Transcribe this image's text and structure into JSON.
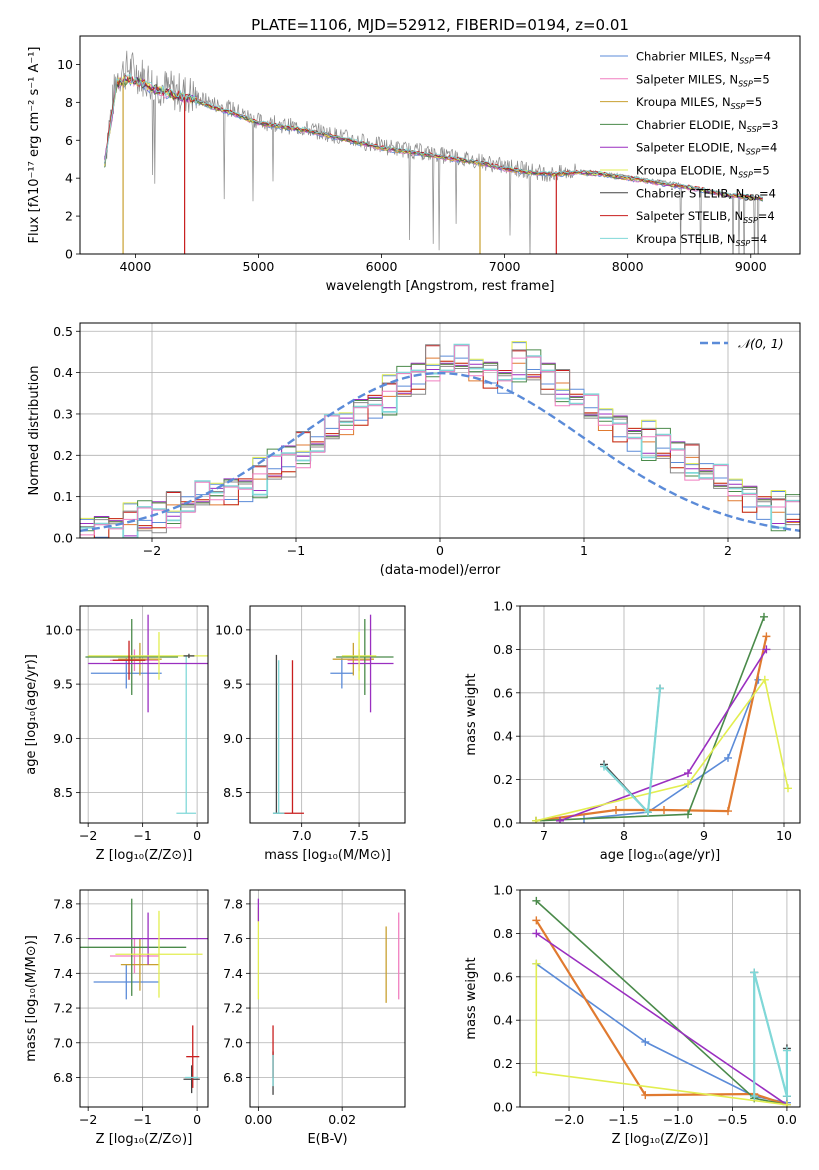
{
  "figure": {
    "title": "PLATE=1106, MJD=52912, FIBERID=0194, z=0.01",
    "colors": {
      "Chabrier MILES": "#5b8bd8",
      "Salpeter MILES": "#f07fc0",
      "Kroupa MILES": "#c8a030",
      "Chabrier ELODIE": "#4a8a4a",
      "Salpeter ELODIE": "#9a2fc0",
      "Kroupa ELODIE": "#e2ee50",
      "Chabrier STELIB": "#444444",
      "Salpeter STELIB": "#c81e1e",
      "Kroupa STELIB": "#80d8d8",
      "spectrum": "#8a8a8a",
      "orange": "#e07a30",
      "gaussian": "#5b8bd8",
      "grid": "#b0b0b0"
    }
  },
  "chart_data": [
    {
      "type": "line",
      "id": "spectrum",
      "xlabel": "wavelength [Angstrom, rest frame]",
      "ylabel": "Flux [fλ10⁻¹⁷ erg cm⁻² s⁻¹ A⁻¹]",
      "xlim": [
        3550,
        9400
      ],
      "ylim": [
        0,
        11.5
      ],
      "xticks": [
        4000,
        5000,
        6000,
        7000,
        8000,
        9000
      ],
      "yticks": [
        0,
        2,
        4,
        6,
        8,
        10
      ],
      "grid": false,
      "legend_position": "top-right",
      "legend": [
        "Chabrier MILES, N_SSP=4",
        "Salpeter MILES, N_SSP=5",
        "Kroupa MILES, N_SSP=5",
        "Chabrier ELODIE, N_SSP=3",
        "Salpeter ELODIE, N_SSP=4",
        "Kroupa ELODIE, N_SSP=5",
        "Chabrier STELIB, N_SSP=4",
        "Salpeter STELIB, N_SSP=4",
        "Kroupa STELIB, N_SSP=4"
      ],
      "data_wavelength": [
        3750,
        3850,
        3950,
        4050,
        4150,
        4300,
        4450,
        4600,
        4800,
        5000,
        5200,
        5400,
        5600,
        5800,
        6000,
        6200,
        6400,
        6600,
        6800,
        7000,
        7200,
        7400,
        7600,
        7800,
        8000,
        8200,
        8400,
        8600,
        8800,
        9000,
        9100
      ],
      "data_flux": [
        5.2,
        9.4,
        9.8,
        9.4,
        9.0,
        8.6,
        8.4,
        8.0,
        7.6,
        7.0,
        6.8,
        6.6,
        6.3,
        6.0,
        5.7,
        5.5,
        5.3,
        5.1,
        4.9,
        4.6,
        4.4,
        4.2,
        4.4,
        4.3,
        4.1,
        3.9,
        3.7,
        3.4,
        3.1,
        3.0,
        2.9
      ],
      "model_wavelength": [
        3750,
        3850,
        3950,
        4050,
        4150,
        4300,
        4450,
        4600,
        4800,
        5000,
        5200,
        5400,
        5600,
        5800,
        6000,
        6200,
        6400,
        6600,
        6800,
        7000,
        7200,
        7400,
        7600,
        7800,
        8000,
        8200,
        8400,
        8600,
        8800,
        9000,
        9100
      ],
      "model_flux": [
        4.8,
        9.0,
        9.2,
        9.0,
        8.7,
        8.4,
        8.2,
        7.8,
        7.4,
        6.9,
        6.7,
        6.5,
        6.2,
        5.9,
        5.6,
        5.4,
        5.2,
        5.0,
        4.8,
        4.5,
        4.3,
        4.2,
        4.3,
        4.2,
        4.0,
        3.8,
        3.6,
        3.4,
        3.1,
        3.0,
        2.9
      ],
      "model_drop_lines": [
        {
          "x": 3900,
          "series": "Kroupa MILES"
        },
        {
          "x": 4400,
          "series": "Salpeter STELIB"
        },
        {
          "x": 6800,
          "series": "Kroupa MILES"
        },
        {
          "x": 7420,
          "series": "Salpeter STELIB"
        }
      ]
    },
    {
      "type": "line",
      "id": "residuals",
      "xlabel": "(data-model)/error",
      "ylabel": "Normed distribution",
      "xlim": [
        -2.5,
        2.5
      ],
      "ylim": [
        0,
        0.52
      ],
      "xticks": [
        -2,
        -1,
        0,
        1,
        2
      ],
      "yticks": [
        0.0,
        0.1,
        0.2,
        0.3,
        0.4,
        0.5
      ],
      "grid": true,
      "legend_position": "top-right",
      "legend": [
        "𝒩(0, 1)"
      ],
      "gaussian": {
        "mean": 0,
        "sigma": 1
      },
      "bin_edges_start": -2.5,
      "bin_width": 0.1,
      "hist_values": [
        0.025,
        0.027,
        0.032,
        0.04,
        0.045,
        0.055,
        0.065,
        0.08,
        0.1,
        0.11,
        0.118,
        0.128,
        0.15,
        0.17,
        0.19,
        0.21,
        0.225,
        0.26,
        0.28,
        0.31,
        0.33,
        0.35,
        0.37,
        0.39,
        0.42,
        0.42,
        0.43,
        0.41,
        0.4,
        0.39,
        0.43,
        0.41,
        0.39,
        0.36,
        0.34,
        0.31,
        0.29,
        0.27,
        0.25,
        0.24,
        0.22,
        0.2,
        0.18,
        0.16,
        0.14,
        0.12,
        0.1,
        0.085,
        0.07,
        0.06
      ],
      "hist_offsets": [
        0,
        0.02,
        -0.02,
        0.03,
        -0.03,
        0.015,
        -0.015,
        0.025,
        -0.025
      ]
    },
    {
      "type": "scatter",
      "id": "age-vs-Z",
      "xlabel": "Z [log₁₀(Z/Z⊙)]",
      "ylabel": "age  [log₁₀(age/yr)]",
      "xlim": [
        -2.15,
        0.2
      ],
      "ylim": [
        8.22,
        10.22
      ],
      "xticks": [
        -2,
        -1,
        0
      ],
      "yticks": [
        8.5,
        9.0,
        9.5,
        10.0
      ],
      "grid": true,
      "points": [
        {
          "series": "Chabrier MILES",
          "x": -1.3,
          "y": 9.6,
          "xerr": 0.65,
          "yerr": 0.14
        },
        {
          "series": "Salpeter MILES",
          "x": -1.15,
          "y": 9.72,
          "xerr": 0.45,
          "yerr": 0.1
        },
        {
          "series": "Kroupa MILES",
          "x": -1.05,
          "y": 9.73,
          "xerr": 0.4,
          "yerr": 0.15
        },
        {
          "series": "Chabrier ELODIE",
          "x": -1.2,
          "y": 9.75,
          "xerr": 0.85,
          "yerr": 0.35
        },
        {
          "series": "Salpeter ELODIE",
          "x": -0.9,
          "y": 9.69,
          "xerr": 1.1,
          "yerr": 0.45
        },
        {
          "series": "Kroupa ELODIE",
          "x": -0.7,
          "y": 9.76,
          "xerr": 1.3,
          "yerr": 0.22
        },
        {
          "series": "Chabrier STELIB",
          "x": -0.15,
          "y": 9.76,
          "xerr": 0.1,
          "yerr": 0.02
        },
        {
          "series": "Salpeter STELIB",
          "x": -1.25,
          "y": 9.72,
          "xerr": 0.3,
          "yerr": 0.18
        },
        {
          "series": "Kroupa STELIB",
          "x": -0.2,
          "y": 8.31,
          "xerr": 0.18,
          "yerr": 0.0
        }
      ],
      "vertical_lines": [
        {
          "series": "Kroupa STELIB",
          "x": -0.2,
          "y0": 8.31,
          "y1": 9.76
        }
      ]
    },
    {
      "type": "scatter",
      "id": "age-vs-mass",
      "xlabel": "mass [log₁₀(M/M⊙)]",
      "ylabel": "",
      "xlim": [
        6.55,
        7.9
      ],
      "ylim": [
        8.22,
        10.22
      ],
      "xticks": [
        7.0,
        7.5
      ],
      "yticks": [
        8.5,
        9.0,
        9.5,
        10.0
      ],
      "grid": true,
      "points": [
        {
          "series": "Chabrier MILES",
          "x": 7.35,
          "y": 9.6,
          "xerr": 0.1,
          "yerr": 0.14
        },
        {
          "series": "Salpeter MILES",
          "x": 7.5,
          "y": 9.72,
          "xerr": 0.1,
          "yerr": 0.1
        },
        {
          "series": "Kroupa MILES",
          "x": 7.45,
          "y": 9.73,
          "xerr": 0.18,
          "yerr": 0.15
        },
        {
          "series": "Chabrier ELODIE",
          "x": 7.55,
          "y": 9.75,
          "xerr": 0.25,
          "yerr": 0.35
        },
        {
          "series": "Salpeter ELODIE",
          "x": 7.6,
          "y": 9.69,
          "xerr": 0.2,
          "yerr": 0.45
        },
        {
          "series": "Kroupa ELODIE",
          "x": 7.5,
          "y": 9.76,
          "xerr": 0.15,
          "yerr": 0.22
        },
        {
          "series": "Chabrier STELIB",
          "x": 6.8,
          "y": 8.31,
          "xerr": 0.05,
          "yerr": 0.0
        },
        {
          "series": "Salpeter STELIB",
          "x": 6.92,
          "y": 8.31,
          "xerr": 0.1,
          "yerr": 0.0
        },
        {
          "series": "Kroupa STELIB",
          "x": 6.8,
          "y": 8.31,
          "xerr": 0.05,
          "yerr": 0.0
        }
      ],
      "vertical_lines": [
        {
          "series": "Chabrier STELIB",
          "x": 6.78,
          "y0": 8.31,
          "y1": 9.77
        },
        {
          "series": "Kroupa STELIB",
          "x": 6.8,
          "y0": 8.31,
          "y1": 9.72
        },
        {
          "series": "Salpeter STELIB",
          "x": 6.92,
          "y0": 8.31,
          "y1": 9.72
        }
      ]
    },
    {
      "type": "line",
      "id": "massweight-vs-age",
      "xlabel": "age  [log₁₀(age/yr)]",
      "ylabel": "mass weight",
      "xlim": [
        6.7,
        10.2
      ],
      "ylim": [
        0,
        1.0
      ],
      "xticks": [
        7,
        8,
        9,
        10
      ],
      "yticks": [
        0.0,
        0.2,
        0.4,
        0.6,
        0.8,
        1.0
      ],
      "grid": true,
      "series": [
        {
          "name": "Chabrier MILES",
          "x": [
            7.5,
            8.3,
            9.3,
            9.68
          ],
          "y": [
            0.02,
            0.05,
            0.3,
            0.66
          ]
        },
        {
          "name": "Kroupa MILES",
          "x": [
            6.9,
            7.9,
            8.5,
            9.3,
            9.78
          ],
          "y": [
            0.01,
            0.06,
            0.06,
            0.055,
            0.86
          ]
        },
        {
          "name": "Chabrier ELODIE",
          "x": [
            6.9,
            8.8,
            9.75
          ],
          "y": [
            0.01,
            0.04,
            0.95
          ]
        },
        {
          "name": "Salpeter ELODIE",
          "x": [
            7.2,
            8.8,
            9.78
          ],
          "y": [
            0.01,
            0.23,
            0.8
          ]
        },
        {
          "name": "Kroupa ELODIE",
          "x": [
            6.9,
            8.8,
            9.76,
            10.05
          ],
          "y": [
            0.01,
            0.18,
            0.66,
            0.16
          ]
        },
        {
          "name": "Chabrier STELIB",
          "x": [
            7.75,
            8.3,
            8.45
          ],
          "y": [
            0.27,
            0.05,
            0.62
          ]
        },
        {
          "name": "Kroupa STELIB",
          "x": [
            7.75,
            8.3,
            8.45
          ],
          "y": [
            0.26,
            0.05,
            0.62
          ]
        }
      ]
    },
    {
      "type": "scatter",
      "id": "mass-vs-Z",
      "xlabel": "Z [log₁₀(Z/Z⊙)]",
      "ylabel": "mass [log₁₀(M/M⊙)]",
      "xlim": [
        -2.15,
        0.2
      ],
      "ylim": [
        6.63,
        7.88
      ],
      "xticks": [
        -2,
        -1,
        0
      ],
      "yticks": [
        6.8,
        7.0,
        7.2,
        7.4,
        7.6,
        7.8
      ],
      "grid": true,
      "points": [
        {
          "series": "Chabrier MILES",
          "x": -1.3,
          "y": 7.35,
          "xerr": 0.6,
          "yerr": 0.1
        },
        {
          "series": "Salpeter MILES",
          "x": -1.15,
          "y": 7.5,
          "xerr": 0.45,
          "yerr": 0.1
        },
        {
          "series": "Kroupa MILES",
          "x": -1.05,
          "y": 7.45,
          "xerr": 0.35,
          "yerr": 0.15
        },
        {
          "series": "Chabrier ELODIE",
          "x": -1.2,
          "y": 7.55,
          "xerr": 1.0,
          "yerr": 0.28
        },
        {
          "series": "Salpeter ELODIE",
          "x": -0.9,
          "y": 7.6,
          "xerr": 1.1,
          "yerr": 0.15
        },
        {
          "series": "Kroupa ELODIE",
          "x": -0.7,
          "y": 7.51,
          "xerr": 0.8,
          "yerr": 0.25
        },
        {
          "series": "Chabrier STELIB",
          "x": -0.1,
          "y": 6.79,
          "xerr": 0.15,
          "yerr": 0.08
        },
        {
          "series": "Salpeter STELIB",
          "x": -0.08,
          "y": 6.92,
          "xerr": 0.12,
          "yerr": 0.18
        },
        {
          "series": "Kroupa STELIB",
          "x": -0.1,
          "y": 6.8,
          "xerr": 0.12,
          "yerr": 0.0
        }
      ]
    },
    {
      "type": "scatter",
      "id": "mass-vs-EBV",
      "xlabel": "E(B-V)",
      "ylabel": "",
      "xlim": [
        -0.002,
        0.035
      ],
      "ylim": [
        6.63,
        7.88
      ],
      "xticks": [
        0.0,
        0.02
      ],
      "yticks": [
        6.8,
        7.0,
        7.2,
        7.4,
        7.6,
        7.8
      ],
      "grid": true,
      "vertical_lines": [
        {
          "series": "Kroupa ELODIE",
          "x": 0.0,
          "y0": 7.25,
          "y1": 7.78
        },
        {
          "series": "Salpeter ELODIE",
          "x": 0.0,
          "y0": 7.7,
          "y1": 7.83
        },
        {
          "series": "Chabrier STELIB",
          "x": 0.0035,
          "y0": 6.7,
          "y1": 6.95
        },
        {
          "series": "Salpeter STELIB",
          "x": 0.0035,
          "y0": 6.8,
          "y1": 7.1
        },
        {
          "series": "Kroupa STELIB",
          "x": 0.0035,
          "y0": 6.75,
          "y1": 6.93
        },
        {
          "series": "Kroupa MILES",
          "x": 0.0305,
          "y0": 7.23,
          "y1": 7.67
        },
        {
          "series": "Salpeter MILES",
          "x": 0.0335,
          "y0": 7.25,
          "y1": 7.75
        }
      ]
    },
    {
      "type": "line",
      "id": "massweight-vs-Z",
      "xlabel": "Z [log₁₀(Z/Z⊙)]",
      "ylabel": "mass weight",
      "xlim": [
        -2.45,
        0.12
      ],
      "ylim": [
        0,
        1.0
      ],
      "xticks": [
        -2.0,
        -1.5,
        -1.0,
        -0.5,
        0.0
      ],
      "yticks": [
        0.0,
        0.2,
        0.4,
        0.6,
        0.8,
        1.0
      ],
      "grid": true,
      "series": [
        {
          "name": "Chabrier MILES",
          "x": [
            -2.3,
            -1.3,
            -0.3,
            0.0
          ],
          "y": [
            0.66,
            0.3,
            0.05,
            0.02
          ]
        },
        {
          "name": "Kroupa MILES",
          "x": [
            -2.3,
            -1.3,
            -0.3,
            0.0
          ],
          "y": [
            0.86,
            0.055,
            0.06,
            0.01
          ]
        },
        {
          "name": "Chabrier ELODIE",
          "x": [
            -2.3,
            -0.3,
            0.0
          ],
          "y": [
            0.95,
            0.04,
            0.01
          ]
        },
        {
          "name": "Salpeter ELODIE",
          "x": [
            -2.3,
            0.0
          ],
          "y": [
            0.8,
            0.01
          ]
        },
        {
          "name": "Kroupa ELODIE",
          "x": [
            -2.3,
            -2.3,
            0.0
          ],
          "y": [
            0.66,
            0.16,
            0.01
          ]
        },
        {
          "name": "Chabrier STELIB",
          "x": [
            -0.3,
            -0.3,
            0.0,
            0.0
          ],
          "y": [
            0.05,
            0.62,
            0.05,
            0.27
          ]
        },
        {
          "name": "Kroupa STELIB",
          "x": [
            -0.3,
            -0.3,
            0.0,
            0.0
          ],
          "y": [
            0.05,
            0.62,
            0.05,
            0.26
          ]
        }
      ]
    }
  ]
}
